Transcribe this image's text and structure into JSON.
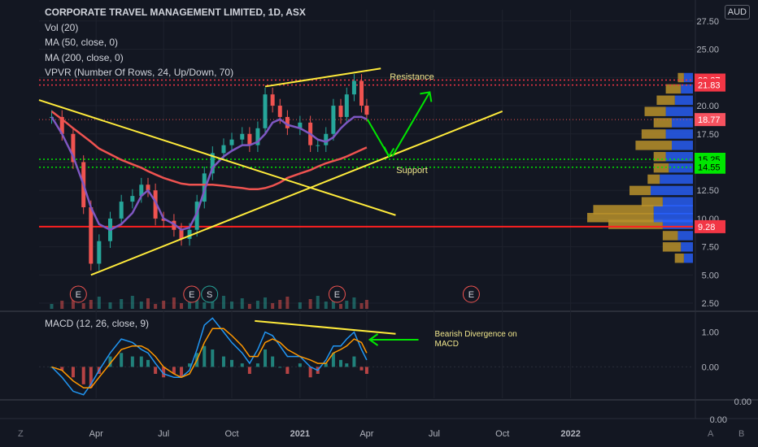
{
  "header": {
    "title": "CORPORATE TRAVEL MANAGEMENT LIMITED, 1D, ASX",
    "indicators": [
      "Vol (20)",
      "MA (50, close, 0)",
      "MA (200, close, 0)",
      "VPVR (Number Of Rows, 24, Up/Down, 70)"
    ],
    "currency": "AUD"
  },
  "macd_label": "MACD (12, 26, close, 9)",
  "bottom_bar": {
    "left": "Z",
    "auto": "A",
    "log": "B"
  },
  "colors": {
    "background": "#131722",
    "up": "#26a69a",
    "down": "#ef5350",
    "ma50": "#7e57c2",
    "ma200": "#ef5350",
    "trendline": "#ffeb3b",
    "arrow": "#00e600",
    "resistance_tag": "#f23645",
    "support_tag": "#00e600",
    "vpvr_up": "#2962ff",
    "vpvr_down": "#b8902a"
  },
  "chart_data": [
    {
      "type": "candlestick",
      "title": "CORPORATE TRAVEL MANAGEMENT LIMITED, 1D, ASX",
      "x_ticks": [
        "Apr",
        "Jul",
        "Oct",
        "2021",
        "Apr",
        "Jul",
        "Oct",
        "2022"
      ],
      "y_ticks": [
        2.5,
        5.0,
        7.5,
        10.0,
        12.5,
        15.0,
        17.5,
        20.0,
        22.5,
        25.0,
        27.5
      ],
      "ylim": [
        2.0,
        28.5
      ],
      "x": [
        "2020-02-01",
        "2020-02-15",
        "2020-03-01",
        "2020-03-15",
        "2020-03-25",
        "2020-04-05",
        "2020-04-20",
        "2020-05-05",
        "2020-05-20",
        "2020-06-01",
        "2020-06-10",
        "2020-06-20",
        "2020-07-01",
        "2020-07-15",
        "2020-07-25",
        "2020-08-05",
        "2020-08-15",
        "2020-08-25",
        "2020-09-05",
        "2020-09-20",
        "2020-10-01",
        "2020-10-15",
        "2020-10-25",
        "2020-11-05",
        "2020-11-15",
        "2020-11-25",
        "2020-12-05",
        "2020-12-15",
        "2021-01-01",
        "2021-01-15",
        "2021-01-25",
        "2021-02-05",
        "2021-02-15",
        "2021-02-25",
        "2021-03-05",
        "2021-03-15",
        "2021-03-25",
        "2021-04-01"
      ],
      "close": [
        19.0,
        17.5,
        15.0,
        11.0,
        6.0,
        8.0,
        10.0,
        11.5,
        12.0,
        13.0,
        12.5,
        10.0,
        9.8,
        9.0,
        8.2,
        9.0,
        11.5,
        14.0,
        15.8,
        16.5,
        17.0,
        17.5,
        16.5,
        18.0,
        21.0,
        20.0,
        19.0,
        18.0,
        18.5,
        16.5,
        16.5,
        17.5,
        20.0,
        19.0,
        21.0,
        22.2,
        20.0,
        19.2
      ],
      "ma50": [
        19.0,
        17.5,
        15.5,
        13.0,
        11.0,
        9.5,
        9.0,
        9.5,
        10.5,
        12.0,
        12.5,
        11.5,
        10.0,
        9.5,
        9.0,
        9.2,
        10.5,
        12.5,
        14.5,
        15.5,
        16.0,
        16.5,
        16.5,
        16.8,
        17.5,
        18.5,
        18.8,
        18.3,
        18.0,
        17.5,
        17.0,
        16.8,
        17.2,
        18.0,
        18.5,
        19.0,
        19.0,
        18.8
      ],
      "ma200": [
        19.5,
        18.8,
        18.0,
        17.3,
        16.8,
        16.2,
        15.7,
        15.2,
        14.8,
        14.5,
        14.2,
        13.9,
        13.6,
        13.3,
        13.1,
        13.0,
        13.0,
        13.0,
        13.0,
        12.9,
        12.8,
        12.7,
        12.6,
        12.6,
        12.7,
        12.9,
        13.2,
        13.6,
        14.0,
        14.3,
        14.6,
        14.9,
        15.1,
        15.3,
        15.5,
        15.8,
        16.1,
        16.3
      ],
      "levels": [
        {
          "value": 22.27,
          "label": "22.27",
          "name": "Resistance"
        },
        {
          "value": 21.83,
          "label": "21.83"
        },
        {
          "value": 18.77,
          "label": "18.77"
        },
        {
          "value": 15.25,
          "label": "15.25",
          "name": "Support"
        },
        {
          "value": 14.55,
          "label": "14.55"
        },
        {
          "value": 9.28,
          "label": "9.28"
        }
      ],
      "annotations": [
        "Resistance",
        "Support"
      ],
      "earnings_markers": [
        "E",
        "E",
        "S",
        "E",
        "E"
      ]
    },
    {
      "type": "bar",
      "title": "MACD (12, 26, close, 9)",
      "y_ticks": [
        0.0,
        1.0
      ],
      "ylim": [
        -0.9,
        1.55
      ],
      "annotation": "Bearish Divergence on MACD",
      "histogram": [
        0.0,
        -0.1,
        -0.3,
        -0.5,
        -0.6,
        -0.2,
        0.3,
        0.4,
        0.3,
        0.3,
        0.2,
        -0.2,
        -0.3,
        -0.2,
        -0.3,
        0.1,
        0.4,
        0.6,
        0.5,
        0.3,
        0.2,
        0.1,
        -0.2,
        0.1,
        0.5,
        0.3,
        0.0,
        -0.2,
        0.1,
        -0.3,
        -0.2,
        0.1,
        0.4,
        0.2,
        0.1,
        0.3,
        -0.1,
        -0.2
      ],
      "macd_line": [
        0.0,
        -0.3,
        -0.7,
        -0.8,
        -0.5,
        -0.1,
        0.4,
        0.8,
        0.7,
        0.5,
        0.4,
        0.1,
        -0.2,
        -0.3,
        -0.3,
        -0.1,
        0.5,
        1.2,
        1.4,
        1.0,
        0.7,
        0.4,
        0.1,
        0.5,
        1.0,
        0.9,
        0.6,
        0.3,
        0.3,
        0.0,
        -0.1,
        0.2,
        0.6,
        0.6,
        0.8,
        1.0,
        0.5,
        0.2
      ],
      "signal_line": [
        0.0,
        -0.1,
        -0.4,
        -0.6,
        -0.6,
        -0.3,
        0.1,
        0.5,
        0.6,
        0.6,
        0.5,
        0.3,
        0.0,
        -0.2,
        -0.3,
        -0.2,
        0.2,
        0.7,
        1.1,
        1.1,
        0.9,
        0.6,
        0.3,
        0.3,
        0.7,
        0.8,
        0.7,
        0.5,
        0.3,
        0.2,
        0.1,
        0.1,
        0.4,
        0.5,
        0.6,
        0.8,
        0.7,
        0.4
      ]
    },
    {
      "type": "bar",
      "title": "VPVR (Number Of Rows, 24, Up/Down, 70)",
      "bins": [
        6.0,
        7.0,
        8.0,
        9.0,
        9.6,
        10.3,
        11.0,
        12.0,
        13.0,
        14.0,
        15.0,
        16.0,
        17.0,
        18.0,
        19.0,
        20.0,
        21.0,
        22.0
      ],
      "up_volume": [
        0.3,
        0.4,
        0.5,
        1.0,
        1.3,
        1.3,
        1.0,
        1.4,
        1.1,
        0.8,
        0.9,
        0.7,
        0.9,
        0.7,
        0.9,
        0.6,
        0.4,
        0.3
      ],
      "down_volume": [
        0.3,
        0.6,
        0.5,
        1.8,
        2.2,
        2.0,
        0.7,
        0.7,
        0.4,
        0.5,
        0.4,
        1.2,
        0.8,
        0.6,
        0.7,
        0.6,
        0.5,
        0.2
      ]
    }
  ],
  "price_pane_extra_label": "0.00",
  "macd_pane_zero_label": "0.00"
}
